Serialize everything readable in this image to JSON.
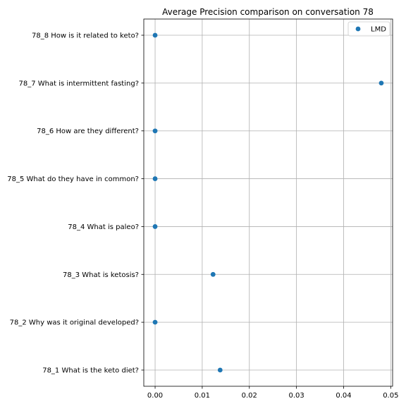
{
  "chart_data": {
    "type": "scatter",
    "title": "Average Precision comparison on conversation 78",
    "xlabel": "",
    "ylabel": "",
    "categories": [
      "78_1 What is the keto diet?",
      "78_2 Why was it original developed?",
      "78_3 What is ketosis?",
      "78_4 What is paleo?",
      "78_5 What do they have in common?",
      "78_6 How are they different?",
      "78_7 What is intermittent fasting?",
      "78_8 How is it related to keto?"
    ],
    "series": [
      {
        "name": "LMD",
        "color": "#1f77b4",
        "values": [
          0.0138,
          0.0,
          0.0123,
          0.0,
          0.0,
          0.0,
          0.048,
          0.0
        ]
      }
    ],
    "xticks": [
      0.0,
      0.01,
      0.02,
      0.03,
      0.04,
      0.05
    ],
    "xtick_labels": [
      "0.00",
      "0.01",
      "0.02",
      "0.03",
      "0.04",
      "0.05"
    ],
    "xlim": [
      -0.0024,
      0.0504
    ],
    "grid": true,
    "legend_position": "top-right"
  }
}
